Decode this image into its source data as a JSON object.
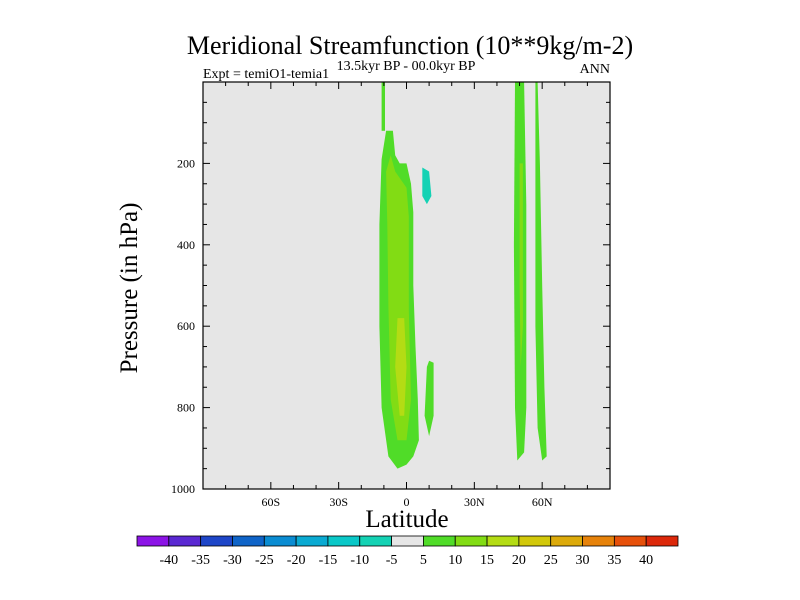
{
  "chart_data": {
    "type": "contour",
    "title": "Meridional Streamfunction (10**9kg/m-2)",
    "left_annotation": "Expt = temiO1-temia1",
    "center_annotation": "13.5kyr BP - 00.0kyr BP",
    "right_annotation": "ANN",
    "xlabel": "Latitude",
    "ylabel": "Pressure (in hPa)",
    "xlim": [
      -90,
      90
    ],
    "ylim": [
      1000,
      0
    ],
    "x_ticks": [
      {
        "value": -60,
        "label": "60S"
      },
      {
        "value": -30,
        "label": "30S"
      },
      {
        "value": 0,
        "label": "0"
      },
      {
        "value": 30,
        "label": "30N"
      },
      {
        "value": 60,
        "label": "60N"
      }
    ],
    "y_ticks": [
      {
        "value": 200,
        "label": "200"
      },
      {
        "value": 400,
        "label": "400"
      },
      {
        "value": 600,
        "label": "600"
      },
      {
        "value": 800,
        "label": "800"
      },
      {
        "value": 1000,
        "label": "1000"
      }
    ],
    "background_color": "#e6e6e6",
    "colorbar": {
      "levels": [
        "-40",
        "-35",
        "-30",
        "-25",
        "-20",
        "-15",
        "-10",
        "-5",
        "5",
        "10",
        "15",
        "20",
        "25",
        "30",
        "35",
        "40"
      ],
      "colors": [
        "#8c14e6",
        "#5a28d2",
        "#1e46c8",
        "#0f64c8",
        "#0a8cd2",
        "#0aaad2",
        "#0ac8c8",
        "#14d2b4",
        "#e6e6e6",
        "#50dc28",
        "#82dc14",
        "#b4dc14",
        "#d2c80a",
        "#dcaa0a",
        "#e6820a",
        "#e6500a",
        "#dc280a"
      ]
    },
    "contour_regions": [
      {
        "name": "sh-polar-negative-band",
        "level": -5,
        "points": [
          [
            -84,
            10
          ],
          [
            -79,
            10
          ],
          [
            -78,
            300
          ],
          [
            -78.5,
            700
          ],
          [
            -79,
            890
          ],
          [
            -80,
            910
          ],
          [
            -82,
            880
          ],
          [
            -83,
            700
          ],
          [
            -84,
            300
          ]
        ]
      },
      {
        "name": "sh-subpolar-negative-band",
        "level": -5,
        "points": [
          [
            -76,
            10
          ],
          [
            -74,
            10
          ],
          [
            -74,
            500
          ],
          [
            -73.5,
            870
          ],
          [
            -74.5,
            910
          ],
          [
            -76,
            870
          ],
          [
            -76,
            500
          ]
        ]
      },
      {
        "name": "sh-midlat-negative-band",
        "level": -5,
        "points": [
          [
            -70,
            10
          ],
          [
            -67,
            10
          ],
          [
            -66.5,
            400
          ],
          [
            -66.5,
            880
          ],
          [
            -67.5,
            930
          ],
          [
            -69.5,
            910
          ],
          [
            -70,
            700
          ],
          [
            -70,
            300
          ]
        ]
      },
      {
        "name": "tropical-positive-cell",
        "level": 5,
        "points": [
          [
            -11,
            190
          ],
          [
            -9,
            120
          ],
          [
            -6,
            120
          ],
          [
            -5,
            180
          ],
          [
            -3,
            200
          ],
          [
            0,
            200
          ],
          [
            2,
            250
          ],
          [
            3,
            320
          ],
          [
            3,
            500
          ],
          [
            4,
            650
          ],
          [
            5,
            780
          ],
          [
            5.5,
            880
          ],
          [
            3,
            920
          ],
          [
            0,
            940
          ],
          [
            -4,
            950
          ],
          [
            -8,
            920
          ],
          [
            -11,
            800
          ],
          [
            -12,
            600
          ],
          [
            -12,
            350
          ]
        ]
      },
      {
        "name": "tropical-positive-core",
        "level": 10,
        "points": [
          [
            -9,
            220
          ],
          [
            -7,
            180
          ],
          [
            -5,
            220
          ],
          [
            0,
            260
          ],
          [
            1,
            330
          ],
          [
            1,
            560
          ],
          [
            2,
            780
          ],
          [
            0,
            880
          ],
          [
            -4,
            880
          ],
          [
            -7,
            780
          ],
          [
            -8,
            550
          ],
          [
            -8.5,
            350
          ]
        ]
      },
      {
        "name": "tropical-positive-center",
        "level": 15,
        "points": [
          [
            -4,
            580
          ],
          [
            -1,
            580
          ],
          [
            0,
            700
          ],
          [
            -1,
            820
          ],
          [
            -3,
            820
          ],
          [
            -5,
            700
          ]
        ]
      },
      {
        "name": "upper-trop-positive-sliver",
        "level": 5,
        "points": [
          [
            -11,
            0
          ],
          [
            -9.5,
            0
          ],
          [
            -9.5,
            120
          ],
          [
            -11,
            120
          ]
        ]
      },
      {
        "name": "ne-tropical-negative-patch",
        "level": -5,
        "points": [
          [
            7,
            150
          ],
          [
            13,
            140
          ],
          [
            22,
            140
          ],
          [
            23,
            170
          ],
          [
            22,
            200
          ],
          [
            18,
            230
          ],
          [
            14,
            300
          ],
          [
            10,
            330
          ],
          [
            7,
            300
          ],
          [
            6,
            200
          ]
        ]
      },
      {
        "name": "ne-tropical-negative-core",
        "level": -10,
        "points": [
          [
            7,
            210
          ],
          [
            10,
            220
          ],
          [
            11,
            280
          ],
          [
            9,
            300
          ],
          [
            7,
            280
          ]
        ]
      },
      {
        "name": "ne-upper-negative-sliver",
        "level": -5,
        "points": [
          [
            2,
            130
          ],
          [
            4,
            110
          ],
          [
            5,
            130
          ],
          [
            4,
            150
          ]
        ]
      },
      {
        "name": "nh-subtropical-positive-finger",
        "level": 5,
        "points": [
          [
            10,
            685
          ],
          [
            12,
            690
          ],
          [
            12,
            820
          ],
          [
            10,
            870
          ],
          [
            8,
            820
          ],
          [
            9,
            700
          ]
        ]
      },
      {
        "name": "nh-midlat-positive-band",
        "level": 5,
        "points": [
          [
            48,
            0
          ],
          [
            52,
            0
          ],
          [
            53,
            300
          ],
          [
            53,
            800
          ],
          [
            52,
            910
          ],
          [
            49,
            930
          ],
          [
            48,
            800
          ],
          [
            47.5,
            400
          ]
        ]
      },
      {
        "name": "nh-midlat-positive-core",
        "level": 10,
        "points": [
          [
            50,
            200
          ],
          [
            51.5,
            200
          ],
          [
            51.5,
            600
          ],
          [
            50.5,
            700
          ],
          [
            50,
            500
          ]
        ]
      },
      {
        "name": "nh-highlat-positive-band",
        "level": 5,
        "points": [
          [
            54,
            0
          ],
          [
            57,
            0
          ],
          [
            57,
            600
          ],
          [
            58,
            850
          ],
          [
            60,
            930
          ],
          [
            62,
            920
          ],
          [
            61,
            750
          ],
          [
            60,
            500
          ],
          [
            59,
            200
          ],
          [
            58,
            0
          ]
        ]
      },
      {
        "name": "nh-polar-negative-band",
        "level": -5,
        "points": [
          [
            68.5,
            0
          ],
          [
            72,
            0
          ],
          [
            71,
            300
          ],
          [
            70.5,
            600
          ],
          [
            70,
            770
          ],
          [
            69,
            760
          ],
          [
            68.5,
            500
          ],
          [
            68,
            200
          ]
        ]
      }
    ]
  }
}
